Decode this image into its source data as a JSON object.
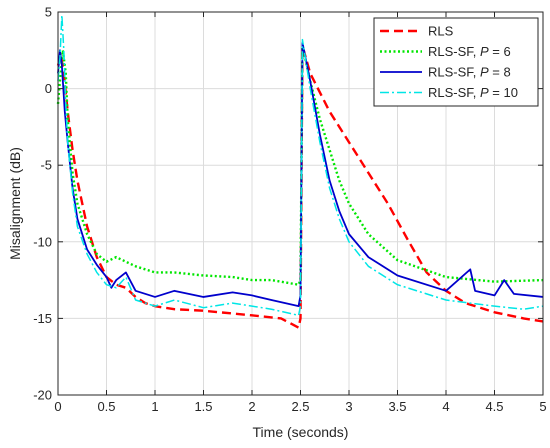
{
  "chart_data": {
    "type": "line",
    "title": "",
    "xlabel": "Time (seconds)",
    "ylabel": "Misalignment (dB)",
    "xlim": [
      0,
      5
    ],
    "ylim": [
      -20,
      5
    ],
    "xticks": [
      0,
      0.5,
      1,
      1.5,
      2,
      2.5,
      3,
      3.5,
      4,
      4.5,
      5
    ],
    "xtick_labels": [
      "0",
      "0.5",
      "1",
      "1.5",
      "2",
      "2.5",
      "3",
      "3.5",
      "4",
      "4.5",
      "5"
    ],
    "yticks": [
      -20,
      -15,
      -10,
      -5,
      0,
      5
    ],
    "ytick_labels": [
      "-20",
      "-15",
      "-10",
      "-5",
      "0",
      "5"
    ],
    "grid": true,
    "legend_position": "top-right",
    "series": [
      {
        "name": "RLS",
        "legend_parts": [
          "RLS"
        ],
        "color": "#ff0000",
        "dash": "dashed",
        "x": [
          0,
          0.03,
          0.06,
          0.1,
          0.15,
          0.2,
          0.25,
          0.3,
          0.4,
          0.5,
          0.6,
          0.7,
          0.8,
          0.9,
          1.0,
          1.2,
          1.5,
          2.0,
          2.3,
          2.48,
          2.5,
          2.52,
          2.6,
          2.8,
          3.0,
          3.2,
          3.4,
          3.6,
          3.8,
          4.0,
          4.2,
          4.5,
          4.8,
          5.0
        ],
        "y": [
          1.5,
          2.2,
          1.0,
          -1.5,
          -4.0,
          -6.0,
          -7.5,
          -9.0,
          -11.0,
          -12.3,
          -12.8,
          -13.0,
          -13.6,
          -14.0,
          -14.2,
          -14.4,
          -14.5,
          -14.8,
          -15.0,
          -15.6,
          -15.0,
          2.8,
          1.0,
          -1.5,
          -3.5,
          -5.5,
          -7.5,
          -9.8,
          -12.0,
          -13.2,
          -14.0,
          -14.6,
          -15.0,
          -15.2
        ]
      },
      {
        "name": "RLS-SF, P = 6",
        "legend_parts": [
          "RLS-SF, ",
          "P",
          " = 6"
        ],
        "color": "#00e600",
        "dash": "dotted",
        "x": [
          0,
          0.02,
          0.05,
          0.08,
          0.1,
          0.15,
          0.2,
          0.3,
          0.4,
          0.5,
          0.6,
          0.7,
          0.8,
          1.0,
          1.2,
          1.5,
          1.8,
          2.0,
          2.2,
          2.48,
          2.5,
          2.52,
          2.6,
          2.7,
          2.8,
          2.9,
          3.0,
          3.2,
          3.5,
          4.0,
          4.5,
          5.0
        ],
        "y": [
          -1.0,
          0.5,
          2.5,
          1.0,
          -2.0,
          -5.5,
          -7.5,
          -9.5,
          -10.8,
          -11.3,
          -11.0,
          -11.3,
          -11.6,
          -12.0,
          -12.0,
          -12.2,
          -12.3,
          -12.5,
          -12.5,
          -12.8,
          -12.5,
          2.8,
          0.5,
          -2.0,
          -4.0,
          -6.0,
          -7.5,
          -9.5,
          -11.2,
          -12.3,
          -12.6,
          -12.5
        ]
      },
      {
        "name": "RLS-SF, P = 8",
        "legend_parts": [
          "RLS-SF, ",
          "P",
          " = 8"
        ],
        "color": "#0000cc",
        "dash": "solid",
        "x": [
          0,
          0.02,
          0.04,
          0.07,
          0.1,
          0.15,
          0.2,
          0.3,
          0.4,
          0.5,
          0.55,
          0.6,
          0.7,
          0.8,
          1.0,
          1.2,
          1.5,
          1.8,
          2.0,
          2.2,
          2.48,
          2.5,
          2.52,
          2.6,
          2.7,
          2.8,
          2.9,
          3.0,
          3.2,
          3.5,
          4.0,
          4.25,
          4.3,
          4.5,
          4.6,
          4.7,
          5.0
        ],
        "y": [
          1.0,
          2.5,
          1.5,
          -1.5,
          -3.5,
          -6.5,
          -8.5,
          -10.5,
          -11.5,
          -12.3,
          -13.0,
          -12.5,
          -12.0,
          -13.2,
          -13.6,
          -13.2,
          -13.6,
          -13.3,
          -13.5,
          -13.8,
          -14.2,
          -13.5,
          3.0,
          0.5,
          -3.0,
          -6.0,
          -8.0,
          -9.5,
          -11.0,
          -12.2,
          -13.2,
          -11.8,
          -13.2,
          -13.5,
          -12.5,
          -13.4,
          -13.6
        ]
      },
      {
        "name": "RLS-SF, P = 10",
        "legend_parts": [
          "RLS-SF, ",
          "P",
          " = 10"
        ],
        "color": "#00e6e6",
        "dash": "dashdot",
        "x": [
          0,
          0.02,
          0.04,
          0.06,
          0.08,
          0.1,
          0.15,
          0.2,
          0.3,
          0.4,
          0.5,
          0.6,
          0.7,
          0.8,
          1.0,
          1.2,
          1.5,
          1.8,
          2.0,
          2.2,
          2.48,
          2.5,
          2.52,
          2.6,
          2.7,
          2.8,
          2.9,
          3.0,
          3.2,
          3.5,
          4.0,
          4.5,
          4.8,
          5.0
        ],
        "y": [
          0.5,
          2.0,
          4.8,
          2.5,
          -1.0,
          -3.5,
          -6.8,
          -9.0,
          -10.8,
          -12.0,
          -12.8,
          -13.0,
          -12.3,
          -13.8,
          -14.2,
          -13.8,
          -14.3,
          -14.0,
          -14.2,
          -14.4,
          -14.8,
          -14.2,
          3.2,
          0.0,
          -3.5,
          -6.5,
          -8.5,
          -10.0,
          -11.6,
          -12.8,
          -13.8,
          -14.2,
          -14.4,
          -14.2
        ]
      }
    ]
  }
}
